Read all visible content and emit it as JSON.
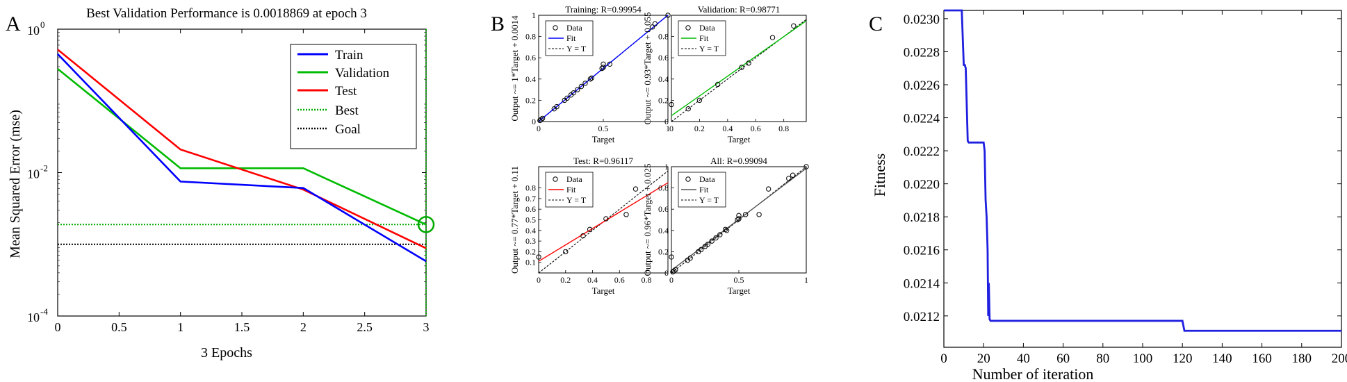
{
  "chart_data": [
    {
      "type": "line",
      "panel_label": "A",
      "title": "Best Validation Performance is 0.0018869 at epoch 3",
      "xlabel": "3 Epochs",
      "ylabel": "Mean Squared Error  (mse)",
      "yscale": "log",
      "xlim": [
        0,
        3
      ],
      "ylim": [
        0.0001,
        1
      ],
      "x_ticks": [
        "0",
        "0.5",
        "1",
        "1.5",
        "2",
        "2.5",
        "3"
      ],
      "x_tick_values": [
        0,
        0.5,
        1,
        1.5,
        2,
        2.5,
        3
      ],
      "y_ticks": [
        {
          "base": "10",
          "exp": "0",
          "value": 1
        },
        {
          "base": "10",
          "exp": "-2",
          "value": 0.01
        },
        {
          "base": "10",
          "exp": "-4",
          "value": 0.0001
        }
      ],
      "legend_position": "top-right",
      "series": [
        {
          "name": "Train",
          "color": "#0000ff",
          "style": "solid",
          "x": [
            0,
            1,
            2,
            3
          ],
          "values": [
            0.45,
            0.0075,
            0.0061,
            0.00058
          ]
        },
        {
          "name": "Validation",
          "color": "#00bb00",
          "style": "solid",
          "x": [
            0,
            1,
            2,
            3
          ],
          "values": [
            0.28,
            0.0115,
            0.0115,
            0.0018869
          ]
        },
        {
          "name": "Test",
          "color": "#ff0000",
          "style": "solid",
          "x": [
            0,
            1,
            2,
            3
          ],
          "values": [
            0.52,
            0.021,
            0.0058,
            0.00088
          ]
        },
        {
          "name": "Best",
          "color": "#00aa00",
          "style": "dotted",
          "best_epoch": 3,
          "best_value": 0.0018869
        },
        {
          "name": "Goal",
          "color": "#000000",
          "style": "dotted",
          "value": 0.001
        }
      ]
    },
    {
      "type": "scatter",
      "panel_label": "B",
      "subplots": [
        {
          "title": "Training: R=0.99954",
          "ylabel": "Output ~= 1*Target + 0.0014",
          "xlabel": "Target",
          "fit_color": "#0000ff",
          "slope": 1.0,
          "intercept": 0.0014,
          "xlim": [
            0,
            1
          ],
          "ylim": [
            0,
            1
          ],
          "x_ticks": [
            "0",
            "0.5",
            "1"
          ],
          "y_ticks": [
            "0",
            "0.2",
            "0.4",
            "0.6",
            "0.8",
            "1"
          ],
          "legend": [
            "Data",
            "Fit",
            "Y = T"
          ],
          "points": [
            [
              0.01,
              0.01
            ],
            [
              0.02,
              0.02
            ],
            [
              0.03,
              0.03
            ],
            [
              0.12,
              0.12
            ],
            [
              0.14,
              0.14
            ],
            [
              0.2,
              0.2
            ],
            [
              0.22,
              0.22
            ],
            [
              0.25,
              0.25
            ],
            [
              0.27,
              0.27
            ],
            [
              0.3,
              0.3
            ],
            [
              0.33,
              0.33
            ],
            [
              0.36,
              0.36
            ],
            [
              0.4,
              0.4
            ],
            [
              0.41,
              0.41
            ],
            [
              0.49,
              0.5
            ],
            [
              0.5,
              0.51
            ],
            [
              0.5,
              0.54
            ],
            [
              0.55,
              0.54
            ],
            [
              0.88,
              0.89
            ],
            [
              0.9,
              0.92
            ],
            [
              1.0,
              1.0
            ]
          ]
        },
        {
          "title": "Validation: R=0.98771",
          "ylabel": "Output ~= 0.93*Target + 0.055",
          "xlabel": "Target",
          "fit_color": "#00bb00",
          "slope": 0.93,
          "intercept": 0.055,
          "xlim": [
            0,
            0.96
          ],
          "ylim": [
            0,
            1
          ],
          "x_ticks": [
            "0",
            "0.2",
            "0.4",
            "0.6",
            "0.8"
          ],
          "y_ticks": [
            "0",
            "0.2",
            "0.4",
            "0.6",
            "0.8"
          ],
          "legend": [
            "Data",
            "Fit",
            "Y = T"
          ],
          "points": [
            [
              0.0,
              0.16
            ],
            [
              0.12,
              0.12
            ],
            [
              0.2,
              0.2
            ],
            [
              0.33,
              0.35
            ],
            [
              0.5,
              0.51
            ],
            [
              0.55,
              0.55
            ],
            [
              0.72,
              0.79
            ],
            [
              0.87,
              0.9
            ]
          ]
        },
        {
          "title": "Test: R=0.96117",
          "ylabel": "Output ~= 0.77*Target + 0.11",
          "xlabel": "Target",
          "fit_color": "#ff0000",
          "slope": 0.77,
          "intercept": 0.11,
          "xlim": [
            0,
            0.96
          ],
          "ylim": [
            0,
            1
          ],
          "x_ticks": [
            "0",
            "0.2",
            "0.4",
            "0.6",
            "0.8"
          ],
          "y_ticks": [
            "0.1",
            "0.2",
            "0.3",
            "0.4",
            "0.5",
            "0.6",
            "0.7",
            "0.8"
          ],
          "legend": [
            "Data",
            "Fit",
            "Y = T"
          ],
          "points": [
            [
              0.0,
              0.15
            ],
            [
              0.2,
              0.2
            ],
            [
              0.33,
              0.35
            ],
            [
              0.38,
              0.41
            ],
            [
              0.5,
              0.51
            ],
            [
              0.65,
              0.55
            ],
            [
              0.72,
              0.79
            ]
          ]
        },
        {
          "title": "All: R=0.99094",
          "ylabel": "Output ~= 0.96*Target + 0.025",
          "xlabel": "Target",
          "fit_color": "#555555",
          "slope": 0.96,
          "intercept": 0.025,
          "xlim": [
            0,
            1
          ],
          "ylim": [
            0,
            1
          ],
          "x_ticks": [
            "0",
            "0.5",
            "1"
          ],
          "y_ticks": [
            "0",
            "0.2",
            "0.4",
            "0.6",
            "0.8",
            "1"
          ],
          "legend": [
            "Data",
            "Fit",
            "Y = T"
          ],
          "points": [
            [
              0.0,
              0.15
            ],
            [
              0.01,
              0.01
            ],
            [
              0.02,
              0.02
            ],
            [
              0.03,
              0.03
            ],
            [
              0.12,
              0.12
            ],
            [
              0.14,
              0.14
            ],
            [
              0.2,
              0.2
            ],
            [
              0.22,
              0.22
            ],
            [
              0.25,
              0.25
            ],
            [
              0.27,
              0.27
            ],
            [
              0.3,
              0.3
            ],
            [
              0.33,
              0.33
            ],
            [
              0.36,
              0.36
            ],
            [
              0.4,
              0.41
            ],
            [
              0.41,
              0.4
            ],
            [
              0.49,
              0.5
            ],
            [
              0.5,
              0.51
            ],
            [
              0.5,
              0.54
            ],
            [
              0.55,
              0.55
            ],
            [
              0.65,
              0.55
            ],
            [
              0.72,
              0.79
            ],
            [
              0.87,
              0.89
            ],
            [
              0.9,
              0.92
            ],
            [
              1.0,
              1.0
            ]
          ]
        }
      ]
    },
    {
      "type": "line",
      "panel_label": "C",
      "xlabel": "Number of iteration",
      "ylabel": "Fitness",
      "xlim": [
        0,
        200
      ],
      "ylim": [
        0.02101,
        0.02305
      ],
      "x_ticks": [
        "0",
        "20",
        "40",
        "60",
        "80",
        "100",
        "120",
        "140",
        "160",
        "180",
        "200"
      ],
      "x_tick_values": [
        0,
        20,
        40,
        60,
        80,
        100,
        120,
        140,
        160,
        180,
        200
      ],
      "y_ticks": [
        "0.0212",
        "0.0214",
        "0.0216",
        "0.0218",
        "0.0220",
        "0.0222",
        "0.0224",
        "0.0226",
        "0.0228",
        "0.0230"
      ],
      "y_tick_values": [
        0.0212,
        0.0214,
        0.0216,
        0.0218,
        0.022,
        0.0222,
        0.0224,
        0.0226,
        0.0228,
        0.023
      ],
      "series": [
        {
          "name": "Fitness",
          "color": "#1f1fe0",
          "x": [
            0,
            9,
            10,
            10.5,
            11,
            12,
            12.5,
            19,
            20,
            20.5,
            21,
            21.5,
            22,
            22.3,
            22.6,
            23,
            23.5,
            24,
            119,
            120,
            121,
            200
          ],
          "values": [
            0.02305,
            0.02305,
            0.02272,
            0.02272,
            0.0227,
            0.02226,
            0.02225,
            0.02225,
            0.02225,
            0.0222,
            0.0219,
            0.0218,
            0.0216,
            0.0212,
            0.0214,
            0.02118,
            0.02117,
            0.02117,
            0.02117,
            0.02117,
            0.02111,
            0.02111
          ]
        }
      ]
    }
  ]
}
